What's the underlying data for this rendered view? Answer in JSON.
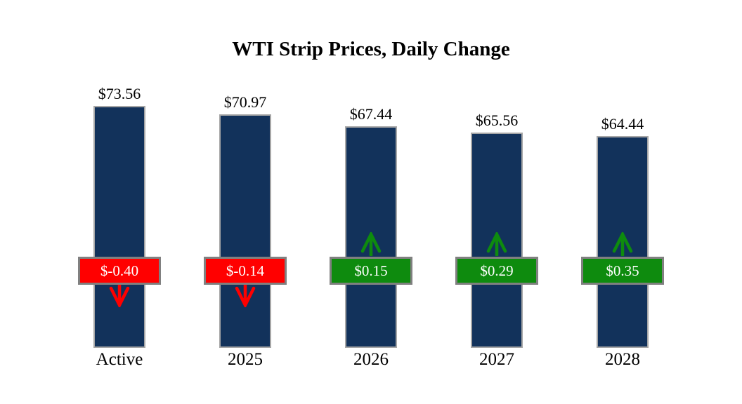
{
  "chart_data": {
    "type": "bar",
    "title": "WTI Strip Prices, Daily Change",
    "categories": [
      "Active",
      "2025",
      "2026",
      "2027",
      "2028"
    ],
    "series": [
      {
        "name": "Strip Price",
        "values": [
          73.56,
          70.97,
          67.44,
          65.56,
          64.44
        ]
      },
      {
        "name": "Daily Change",
        "values": [
          -0.4,
          -0.14,
          0.15,
          0.29,
          0.35
        ]
      }
    ],
    "columns": [
      {
        "category": "Active",
        "price": 73.56,
        "price_label": "$73.56",
        "change": -0.4,
        "change_label": "$-0.40",
        "direction": "down"
      },
      {
        "category": "2025",
        "price": 70.97,
        "price_label": "$70.97",
        "change": -0.14,
        "change_label": "$-0.14",
        "direction": "down"
      },
      {
        "category": "2026",
        "price": 67.44,
        "price_label": "$67.44",
        "change": 0.15,
        "change_label": "$0.15",
        "direction": "up"
      },
      {
        "category": "2027",
        "price": 65.56,
        "price_label": "$65.56",
        "change": 0.29,
        "change_label": "$0.29",
        "direction": "up"
      },
      {
        "category": "2028",
        "price": 64.44,
        "price_label": "$64.44",
        "change": 0.35,
        "change_label": "$0.35",
        "direction": "up"
      }
    ],
    "ylim": [
      0,
      80
    ],
    "grid": false,
    "legend": false,
    "colors": {
      "bar_fill": "#12325B",
      "bar_border": "#A6A6A6",
      "badge_border": "#808080",
      "negative": "#FF0000",
      "positive": "#0E8B0E",
      "badge_text": "#FFFFFF",
      "label_text": "#000000",
      "background": "#FFFFFF"
    }
  }
}
